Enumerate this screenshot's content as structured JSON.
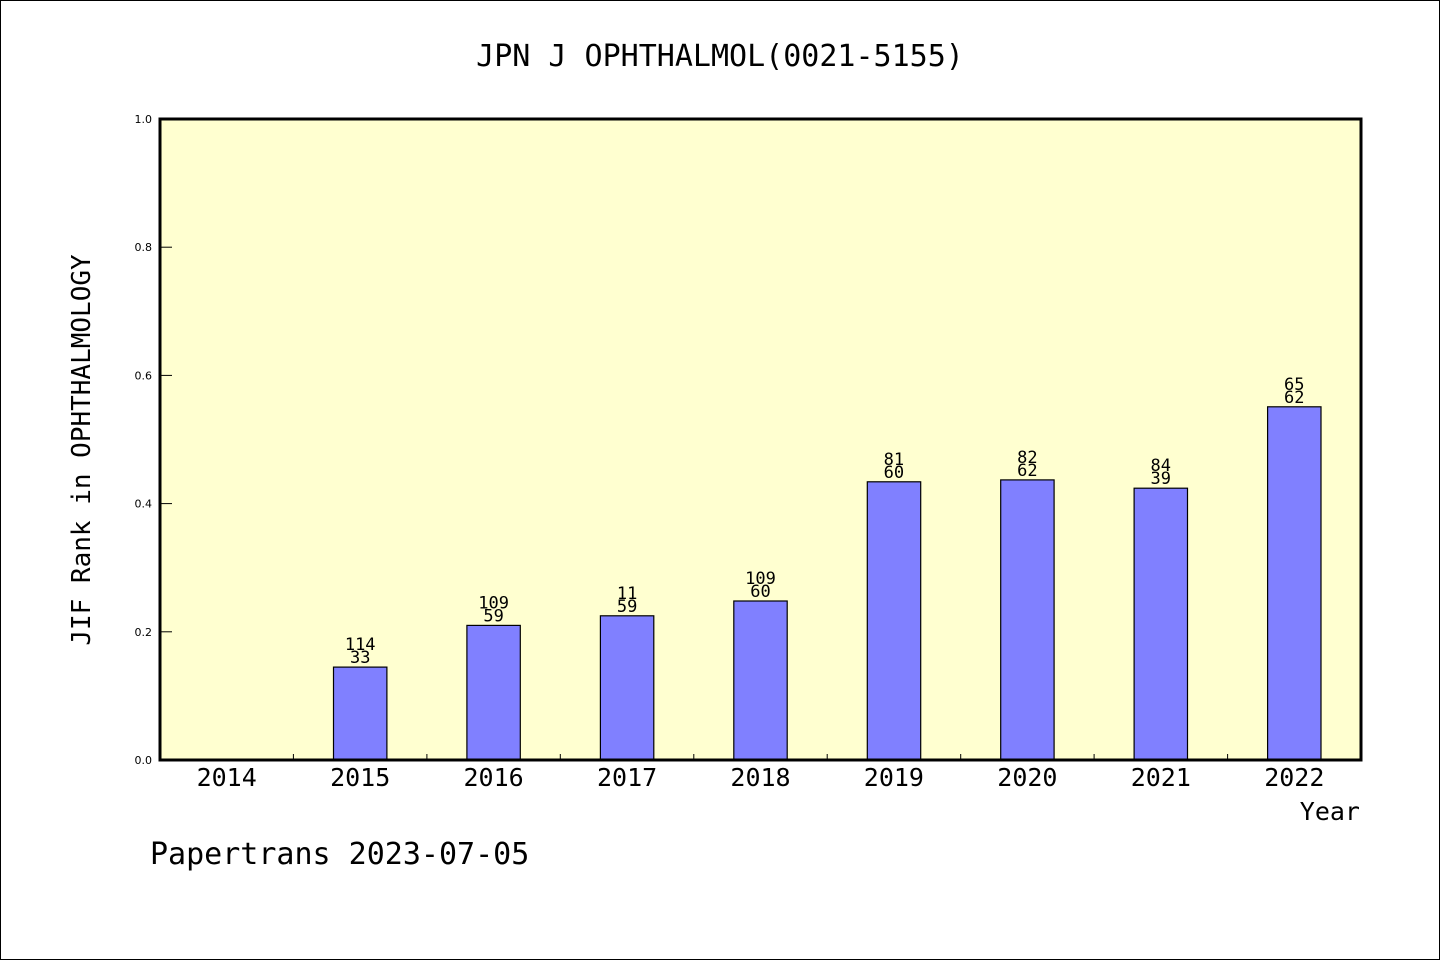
{
  "chart_data": {
    "type": "bar",
    "title": "JPN J OPHTHALMOL(0021-5155)",
    "xlabel": "Year",
    "ylabel": "JIF Rank in OPHTHALMOLOGY",
    "categories": [
      "2014",
      "2015",
      "2016",
      "2017",
      "2018",
      "2019",
      "2020",
      "2021",
      "2022"
    ],
    "values": [
      null,
      0.145,
      0.21,
      0.225,
      0.248,
      0.434,
      0.437,
      0.424,
      0.551
    ],
    "label_top": [
      "",
      "114",
      "109",
      "11",
      "109",
      "81",
      "82",
      "84",
      "65"
    ],
    "label_bottom": [
      "",
      "33",
      "59",
      "59",
      "60",
      "60",
      "62",
      "39",
      "62"
    ],
    "ylim": [
      0,
      1.0
    ],
    "yticks": [
      "0.0",
      "0.2",
      "0.4",
      "0.6",
      "0.8",
      "1.0"
    ],
    "grid": false,
    "colors": {
      "plot_background": "#FFFFD0",
      "bar_fill": "#8080FF",
      "bar_stroke": "#000000",
      "axis": "#000000"
    }
  },
  "footer": {
    "text": "Papertrans 2023-07-05"
  }
}
